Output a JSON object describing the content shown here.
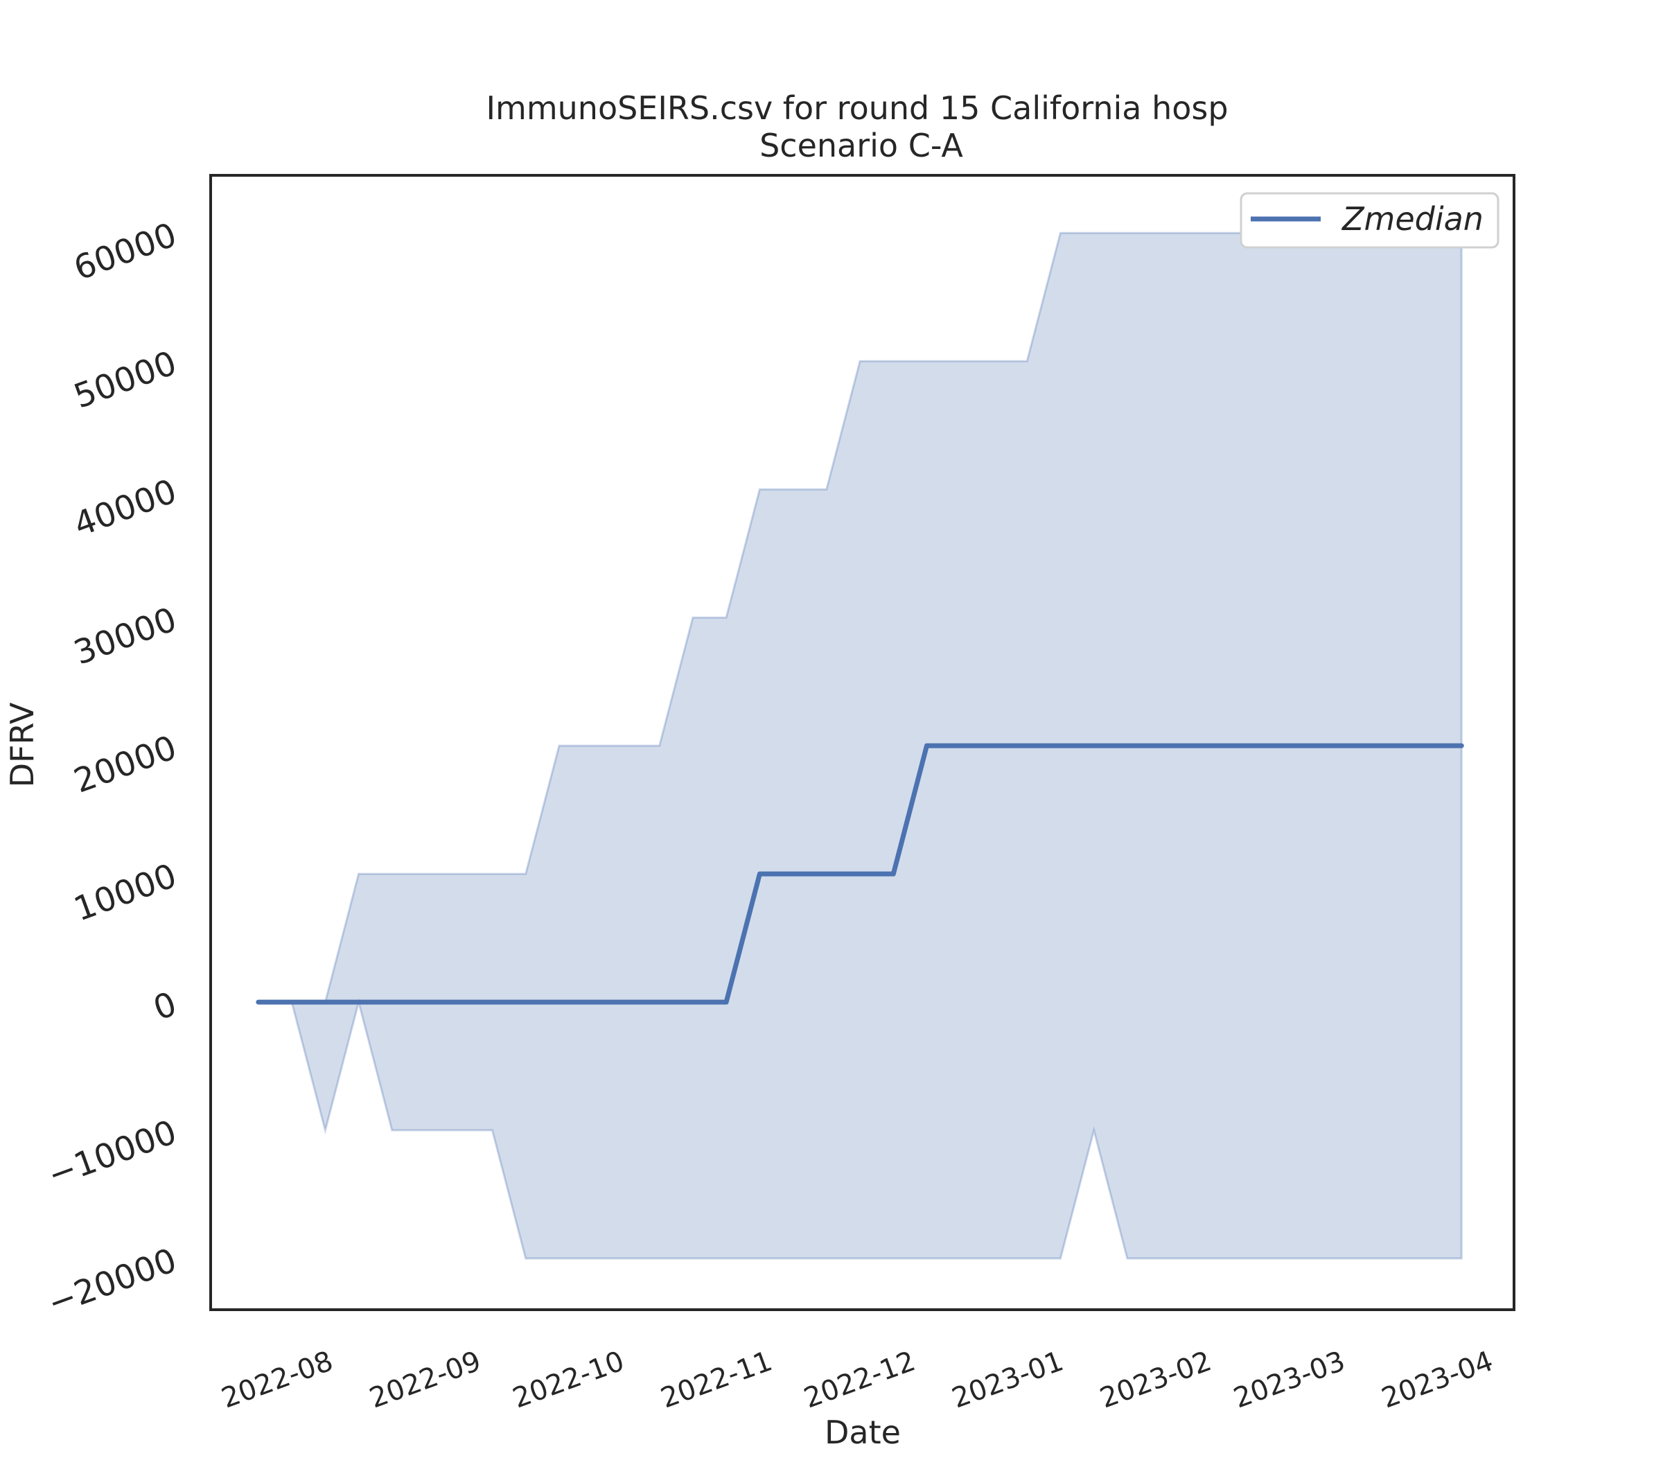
{
  "chart_data": {
    "type": "area",
    "title": "ImmunoSEIRS.csv for round 15 California hosp",
    "subtitle": "Scenario C-A",
    "xlabel": "Date",
    "ylabel": "DFRV",
    "x_ticks": [
      "2022-08",
      "2022-09",
      "2022-10",
      "2022-11",
      "2022-12",
      "2023-01",
      "2023-02",
      "2023-03",
      "2023-04"
    ],
    "y_ticks": [
      -20000,
      -10000,
      0,
      10000,
      20000,
      30000,
      40000,
      50000,
      60000
    ],
    "y_tick_labels": [
      "−20000",
      "−10000",
      "0",
      "10000",
      "20000",
      "30000",
      "40000",
      "50000",
      "60000"
    ],
    "xlim": [
      "2022-07-06",
      "2023-04-05"
    ],
    "ylim": [
      -24000,
      64500
    ],
    "grid": false,
    "legend_position": "top-right",
    "colors": {
      "line": "#4c72b0",
      "band_fill": "#4c72b0",
      "band_opacity": 0.25,
      "frame": "#262626"
    },
    "band": {
      "upper": [
        {
          "x": "2022-07-16",
          "y": 0
        },
        {
          "x": "2022-07-23",
          "y": 0
        },
        {
          "x": "2022-07-30",
          "y": 0
        },
        {
          "x": "2022-08-06",
          "y": 10000
        },
        {
          "x": "2022-08-13",
          "y": 10000
        },
        {
          "x": "2022-08-20",
          "y": 10000
        },
        {
          "x": "2022-08-27",
          "y": 10000
        },
        {
          "x": "2022-09-03",
          "y": 10000
        },
        {
          "x": "2022-09-10",
          "y": 10000
        },
        {
          "x": "2022-09-17",
          "y": 20000
        },
        {
          "x": "2022-09-24",
          "y": 20000
        },
        {
          "x": "2022-10-01",
          "y": 20000
        },
        {
          "x": "2022-10-08",
          "y": 20000
        },
        {
          "x": "2022-10-15",
          "y": 30000
        },
        {
          "x": "2022-10-22",
          "y": 30000
        },
        {
          "x": "2022-10-29",
          "y": 40000
        },
        {
          "x": "2022-11-05",
          "y": 40000
        },
        {
          "x": "2022-11-12",
          "y": 40000
        },
        {
          "x": "2022-11-19",
          "y": 50000
        },
        {
          "x": "2022-11-26",
          "y": 50000
        },
        {
          "x": "2022-12-03",
          "y": 50000
        },
        {
          "x": "2022-12-10",
          "y": 50000
        },
        {
          "x": "2022-12-17",
          "y": 50000
        },
        {
          "x": "2022-12-24",
          "y": 50000
        },
        {
          "x": "2022-12-31",
          "y": 60000
        },
        {
          "x": "2023-01-07",
          "y": 60000
        },
        {
          "x": "2023-01-14",
          "y": 60000
        },
        {
          "x": "2023-01-21",
          "y": 60000
        },
        {
          "x": "2023-01-28",
          "y": 60000
        },
        {
          "x": "2023-02-04",
          "y": 60000
        },
        {
          "x": "2023-02-11",
          "y": 60000
        },
        {
          "x": "2023-02-18",
          "y": 60000
        },
        {
          "x": "2023-02-25",
          "y": 60000
        },
        {
          "x": "2023-03-04",
          "y": 60000
        },
        {
          "x": "2023-03-11",
          "y": 60000
        },
        {
          "x": "2023-03-18",
          "y": 60000
        },
        {
          "x": "2023-03-25",
          "y": 60000
        }
      ],
      "lower": [
        {
          "x": "2022-07-16",
          "y": 0
        },
        {
          "x": "2022-07-23",
          "y": 0
        },
        {
          "x": "2022-07-30",
          "y": -10000
        },
        {
          "x": "2022-08-06",
          "y": 0
        },
        {
          "x": "2022-08-13",
          "y": -10000
        },
        {
          "x": "2022-08-20",
          "y": -10000
        },
        {
          "x": "2022-08-27",
          "y": -10000
        },
        {
          "x": "2022-09-03",
          "y": -10000
        },
        {
          "x": "2022-09-10",
          "y": -20000
        },
        {
          "x": "2022-09-17",
          "y": -20000
        },
        {
          "x": "2022-09-24",
          "y": -20000
        },
        {
          "x": "2022-10-01",
          "y": -20000
        },
        {
          "x": "2022-10-08",
          "y": -20000
        },
        {
          "x": "2022-10-15",
          "y": -20000
        },
        {
          "x": "2022-10-22",
          "y": -20000
        },
        {
          "x": "2022-10-29",
          "y": -20000
        },
        {
          "x": "2022-11-05",
          "y": -20000
        },
        {
          "x": "2022-11-12",
          "y": -20000
        },
        {
          "x": "2022-11-19",
          "y": -20000
        },
        {
          "x": "2022-11-26",
          "y": -20000
        },
        {
          "x": "2022-12-03",
          "y": -20000
        },
        {
          "x": "2022-12-10",
          "y": -20000
        },
        {
          "x": "2022-12-17",
          "y": -20000
        },
        {
          "x": "2022-12-24",
          "y": -20000
        },
        {
          "x": "2022-12-31",
          "y": -20000
        },
        {
          "x": "2023-01-07",
          "y": -10000
        },
        {
          "x": "2023-01-14",
          "y": -20000
        },
        {
          "x": "2023-01-21",
          "y": -20000
        },
        {
          "x": "2023-01-28",
          "y": -20000
        },
        {
          "x": "2023-02-04",
          "y": -20000
        },
        {
          "x": "2023-02-11",
          "y": -20000
        },
        {
          "x": "2023-02-18",
          "y": -20000
        },
        {
          "x": "2023-02-25",
          "y": -20000
        },
        {
          "x": "2023-03-04",
          "y": -20000
        },
        {
          "x": "2023-03-11",
          "y": -20000
        },
        {
          "x": "2023-03-18",
          "y": -20000
        },
        {
          "x": "2023-03-25",
          "y": -20000
        }
      ]
    },
    "series": [
      {
        "name": "Zmedian",
        "points": [
          {
            "x": "2022-07-16",
            "y": 0
          },
          {
            "x": "2022-10-22",
            "y": 0
          },
          {
            "x": "2022-10-29",
            "y": 10000
          },
          {
            "x": "2022-11-26",
            "y": 10000
          },
          {
            "x": "2022-12-03",
            "y": 20000
          },
          {
            "x": "2023-03-25",
            "y": 20000
          }
        ]
      }
    ]
  }
}
